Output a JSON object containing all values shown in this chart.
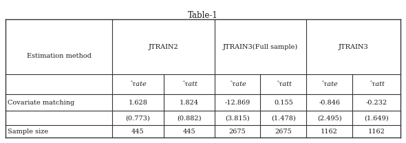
{
  "title": "Table-1",
  "row1_values": [
    "1.628",
    "1.824",
    "-12.869",
    "0.155",
    "-0.846",
    "-0.232"
  ],
  "row2_values": [
    "(0.773)",
    "(0.882)",
    "(3.815)",
    "(1.478)",
    "(2.495)",
    "(1.649)"
  ],
  "row3_values": [
    "445",
    "445",
    "2675",
    "2675",
    "1162",
    "1162"
  ],
  "row1_label": "Covariate matching",
  "row3_label": "Sample size",
  "group_headers": [
    "JTRAIN2",
    "JTRAIN3(Full sample)",
    "JTRAIN3"
  ],
  "sub_headers": [
    "ˆτate",
    "ˆτatt",
    "ˆτate",
    "ˆτatt",
    "ˆτate",
    "ˆτatt"
  ],
  "em_label": "Estimation method",
  "bg_color": "#ffffff",
  "text_color": "#1a1a1a",
  "fontsize": 7.0,
  "title_fontsize": 8.5
}
